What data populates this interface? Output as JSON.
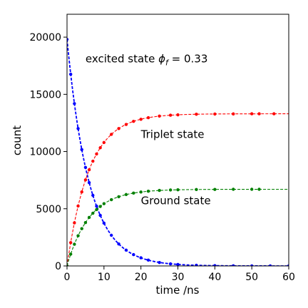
{
  "chart_data": {
    "type": "scatter",
    "title": "",
    "xlabel": "time /ns",
    "ylabel": "count",
    "xlim": [
      0,
      60
    ],
    "ylim": [
      0,
      22000
    ],
    "xticks": [
      0,
      10,
      20,
      30,
      40,
      50,
      60
    ],
    "yticks": [
      0,
      5000,
      10000,
      15000,
      20000
    ],
    "grid": false,
    "model": {
      "tau_ns": 6.0,
      "excited_initial": 19800,
      "triplet_final": 13300,
      "ground_final": 6700
    },
    "series": [
      {
        "color": "#0000ff",
        "fit_style": "dashed",
        "x": [
          0,
          1,
          2,
          3,
          4,
          5,
          6,
          7,
          8,
          9,
          10,
          12,
          14,
          16,
          18,
          20,
          22,
          25,
          28,
          30,
          35,
          40,
          45,
          50,
          55,
          60
        ],
        "y": [
          19800,
          16760,
          14190,
          12010,
          10170,
          8610,
          7280,
          6170,
          5220,
          4420,
          3740,
          2680,
          1920,
          1380,
          990,
          710,
          510,
          300,
          180,
          130,
          60,
          25,
          10,
          5,
          2,
          1
        ]
      },
      {
        "color": "#ff0000",
        "fit_style": "dashed",
        "x": [
          0,
          1,
          2,
          3,
          4,
          5,
          6,
          7,
          8,
          9,
          10,
          12,
          14,
          16,
          18,
          20,
          22,
          25,
          28,
          30,
          35,
          40,
          45,
          50,
          52,
          56
        ],
        "y": [
          0,
          2040,
          3770,
          5240,
          6470,
          7520,
          8410,
          9160,
          9790,
          10330,
          10790,
          11500,
          12010,
          12370,
          12640,
          12820,
          12960,
          13100,
          13180,
          13210,
          13260,
          13280,
          13290,
          13300,
          13300,
          13300
        ]
      },
      {
        "color": "#008000",
        "fit_style": "dashed",
        "x": [
          0,
          1,
          2,
          3,
          4,
          5,
          6,
          7,
          8,
          9,
          10,
          12,
          14,
          16,
          18,
          20,
          22,
          25,
          28,
          30,
          35,
          40,
          45,
          50,
          52
        ],
        "y": [
          0,
          1030,
          1900,
          2640,
          3260,
          3790,
          4240,
          4610,
          4930,
          5200,
          5440,
          5790,
          6050,
          6240,
          6370,
          6460,
          6530,
          6600,
          6640,
          6660,
          6680,
          6690,
          6700,
          6700,
          6700
        ]
      }
    ],
    "annotations": [
      {
        "text": "excited state ",
        "symbol": "ϕ",
        "subscript": "f",
        "suffix": " = 0.33",
        "x": 5,
        "y": 17800
      },
      {
        "text": "Triplet state",
        "x": 20,
        "y": 11200
      },
      {
        "text": "Ground state",
        "x": 20,
        "y": 5400
      }
    ]
  }
}
